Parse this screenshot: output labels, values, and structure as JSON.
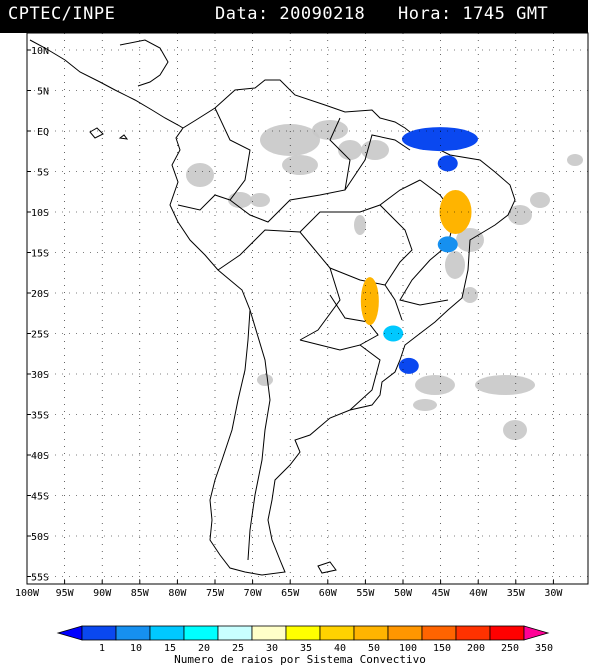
{
  "header": {
    "source": "CPTEC/INPE",
    "date_label": "Data: 20090218",
    "time_label": "Hora: 1745 GMT"
  },
  "axes": {
    "lat_labels": [
      "10N",
      "5N",
      "EQ",
      "5S",
      "10S",
      "15S",
      "20S",
      "25S",
      "30S",
      "35S",
      "40S",
      "45S",
      "50S",
      "55S"
    ],
    "lon_labels": [
      "100W",
      "95W",
      "90W",
      "85W",
      "80W",
      "75W",
      "70W",
      "65W",
      "60W",
      "55W",
      "50W",
      "45W",
      "40W",
      "35W",
      "30W"
    ]
  },
  "colorbar": {
    "ticks": [
      "1",
      "10",
      "15",
      "20",
      "25",
      "30",
      "35",
      "40",
      "50",
      "100",
      "150",
      "200",
      "250",
      "350"
    ],
    "colors": [
      "#0000ff",
      "#0a48f0",
      "#1690f0",
      "#00c8ff",
      "#00ffff",
      "#c8ffff",
      "#ffffc8",
      "#ffff00",
      "#ffd200",
      "#ffb400",
      "#ff9600",
      "#ff6400",
      "#ff3200",
      "#ff0000",
      "#ff0096"
    ],
    "caption": "Numero de raios por Sistema Convectivo"
  },
  "map_data": {
    "region": "South America",
    "lon_range": [
      -100,
      -28
    ],
    "lat_range": [
      -56,
      12
    ],
    "convective_systems": [
      {
        "area": "Pará / Amapá coast",
        "lon": -47,
        "lat": -1,
        "class": "1-10"
      },
      {
        "area": "Maranhão",
        "lon": -46,
        "lat": -4,
        "class": "1-10"
      },
      {
        "area": "Piauí / Bahia",
        "lon": -45,
        "lat": -10,
        "class": "50-100"
      },
      {
        "area": "Tocantins / Bahia",
        "lon": -46,
        "lat": -14,
        "class": "10-15"
      },
      {
        "area": "Mato Grosso do Sul / Paraguay",
        "lon": -56,
        "lat": -21,
        "class": "50-100"
      },
      {
        "area": "Paraná",
        "lon": -53,
        "lat": -25,
        "class": "20-25"
      },
      {
        "area": "Rio Grande do Sul",
        "lon": -51,
        "lat": -29,
        "class": "1-10"
      }
    ]
  }
}
